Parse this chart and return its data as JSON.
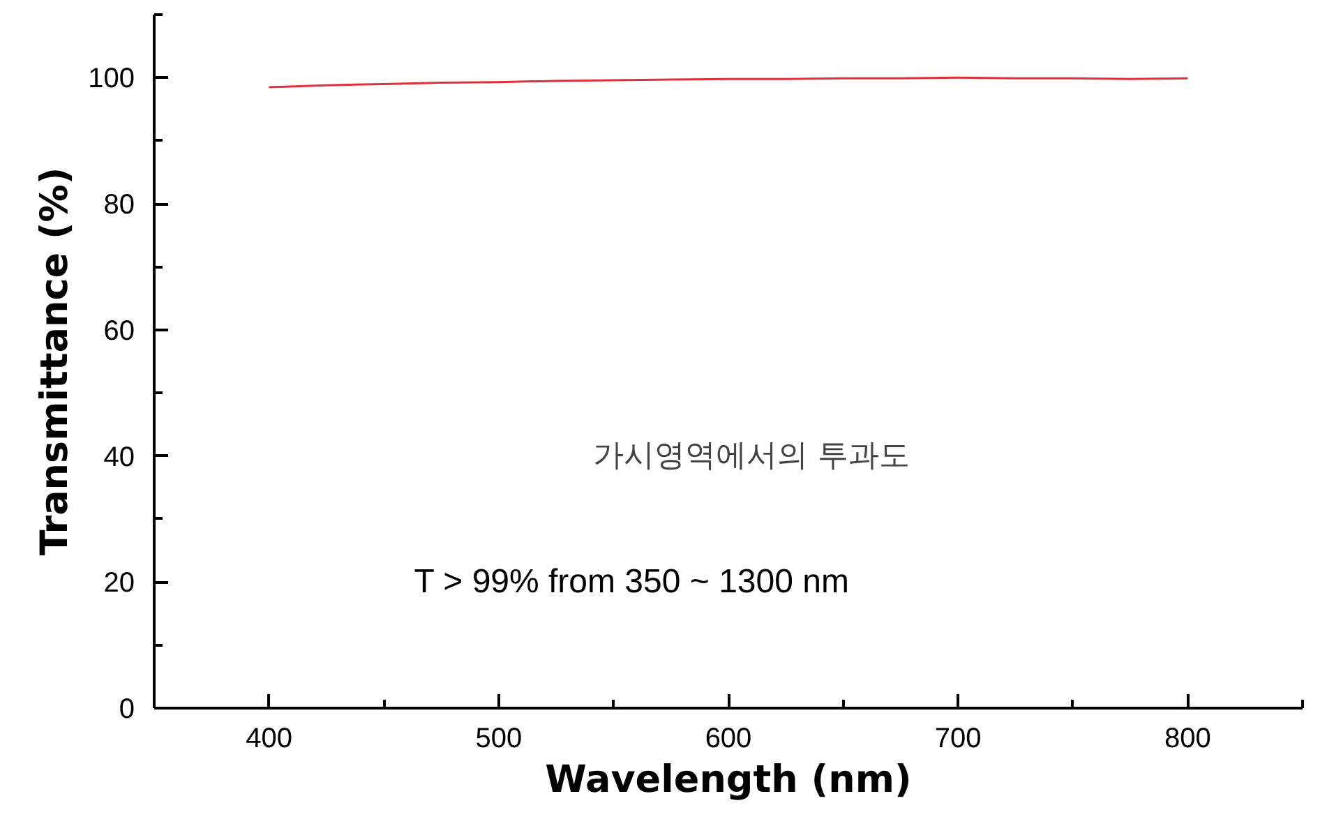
{
  "chart_data": {
    "type": "line",
    "xlabel": "Wavelength (nm)",
    "ylabel": "Transmittance (%)",
    "x": [
      400,
      425,
      450,
      475,
      500,
      525,
      550,
      575,
      600,
      625,
      650,
      675,
      700,
      725,
      750,
      775,
      800
    ],
    "series": [
      {
        "color": "#e0303a",
        "values": [
          98.5,
          98.8,
          99.0,
          99.2,
          99.3,
          99.5,
          99.6,
          99.7,
          99.8,
          99.8,
          99.9,
          99.9,
          100,
          99.9,
          99.9,
          99.8,
          99.9
        ]
      }
    ],
    "xlim": [
      350,
      850
    ],
    "ylim": [
      0,
      110
    ],
    "xticks": [
      400,
      500,
      600,
      700,
      800
    ],
    "yticks": [
      0,
      20,
      40,
      60,
      80,
      100
    ],
    "grid": false,
    "marker": "none",
    "line_style": "solid",
    "annotations": [
      "가시영역에서의 투과도",
      "T > 99%  from 350 ~ 1300 nm"
    ]
  }
}
